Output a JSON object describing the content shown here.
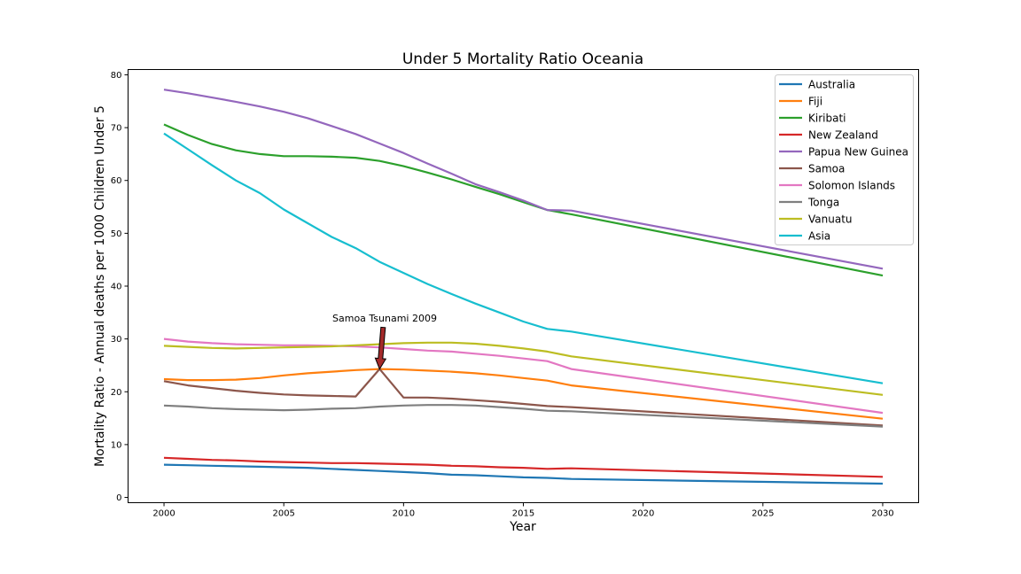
{
  "chart_data": {
    "type": "line",
    "title": "Under 5 Mortality Ratio Oceania",
    "xlabel": "Year",
    "ylabel": "Mortality Ratio - Annual deaths per 1000 Children Under 5",
    "xlim": [
      1998.5,
      2031.5
    ],
    "ylim": [
      -1,
      81
    ],
    "xticks": [
      2000,
      2005,
      2010,
      2015,
      2020,
      2025,
      2030
    ],
    "yticks": [
      0,
      10,
      20,
      30,
      40,
      50,
      60,
      70,
      80
    ],
    "grid": false,
    "legend_position": "top-right",
    "annotation": {
      "text": "Samoa Tsunami 2009",
      "x": 2009,
      "y": 24.3,
      "arrow_color": "#a52a2a"
    },
    "x": [
      2000,
      2001,
      2002,
      2003,
      2004,
      2005,
      2006,
      2007,
      2008,
      2009,
      2010,
      2011,
      2012,
      2013,
      2014,
      2015,
      2016,
      2017,
      2030
    ],
    "series": [
      {
        "name": "Australia",
        "color": "#1f77b4",
        "values": [
          6.2,
          6.1,
          6.0,
          5.9,
          5.8,
          5.7,
          5.6,
          5.4,
          5.2,
          5.0,
          4.8,
          4.6,
          4.3,
          4.2,
          4.0,
          3.8,
          3.7,
          3.5,
          2.6
        ]
      },
      {
        "name": "Fiji",
        "color": "#ff7f0e",
        "values": [
          22.4,
          22.2,
          22.2,
          22.3,
          22.6,
          23.1,
          23.5,
          23.8,
          24.1,
          24.3,
          24.2,
          24.0,
          23.8,
          23.5,
          23.1,
          22.6,
          22.1,
          21.2,
          14.9
        ]
      },
      {
        "name": "Kiribati",
        "color": "#2ca02c",
        "values": [
          70.6,
          68.6,
          66.9,
          65.7,
          65.0,
          64.6,
          64.6,
          64.5,
          64.3,
          63.7,
          62.7,
          61.5,
          60.2,
          58.8,
          57.4,
          55.9,
          54.4,
          53.6,
          42.0
        ]
      },
      {
        "name": "New Zealand",
        "color": "#d62728",
        "values": [
          7.5,
          7.3,
          7.1,
          7.0,
          6.8,
          6.7,
          6.6,
          6.5,
          6.5,
          6.4,
          6.3,
          6.2,
          6.0,
          5.9,
          5.7,
          5.6,
          5.4,
          5.5,
          3.9
        ]
      },
      {
        "name": "Papua New Guinea",
        "color": "#9467bd",
        "values": [
          77.2,
          76.5,
          75.7,
          74.9,
          74.0,
          73.0,
          71.8,
          70.3,
          68.8,
          67.0,
          65.2,
          63.2,
          61.3,
          59.3,
          57.8,
          56.2,
          54.4,
          54.3,
          43.3
        ]
      },
      {
        "name": "Samoa",
        "color": "#8c564b",
        "values": [
          22.0,
          21.2,
          20.7,
          20.2,
          19.8,
          19.5,
          19.3,
          19.2,
          19.1,
          24.3,
          18.9,
          18.9,
          18.7,
          18.4,
          18.1,
          17.7,
          17.3,
          17.1,
          13.6
        ]
      },
      {
        "name": "Solomon Islands",
        "color": "#e377c2",
        "values": [
          30.0,
          29.5,
          29.2,
          29.0,
          28.9,
          28.8,
          28.8,
          28.7,
          28.6,
          28.4,
          28.1,
          27.8,
          27.6,
          27.2,
          26.8,
          26.3,
          25.8,
          24.3,
          16.0
        ]
      },
      {
        "name": "Tonga",
        "color": "#7f7f7f",
        "values": [
          17.4,
          17.2,
          16.9,
          16.7,
          16.6,
          16.5,
          16.6,
          16.8,
          16.9,
          17.2,
          17.4,
          17.5,
          17.5,
          17.4,
          17.1,
          16.8,
          16.4,
          16.3,
          13.4
        ]
      },
      {
        "name": "Vanuatu",
        "color": "#bcbd22",
        "values": [
          28.7,
          28.5,
          28.3,
          28.2,
          28.3,
          28.4,
          28.5,
          28.6,
          28.8,
          29.0,
          29.2,
          29.3,
          29.3,
          29.1,
          28.7,
          28.2,
          27.6,
          26.7,
          19.4
        ]
      },
      {
        "name": "Asia",
        "color": "#17becf",
        "values": [
          68.9,
          65.9,
          62.9,
          60.0,
          57.6,
          54.5,
          51.9,
          49.3,
          47.2,
          44.6,
          42.5,
          40.4,
          38.5,
          36.7,
          35.0,
          33.3,
          31.9,
          31.4,
          21.6
        ]
      }
    ]
  }
}
